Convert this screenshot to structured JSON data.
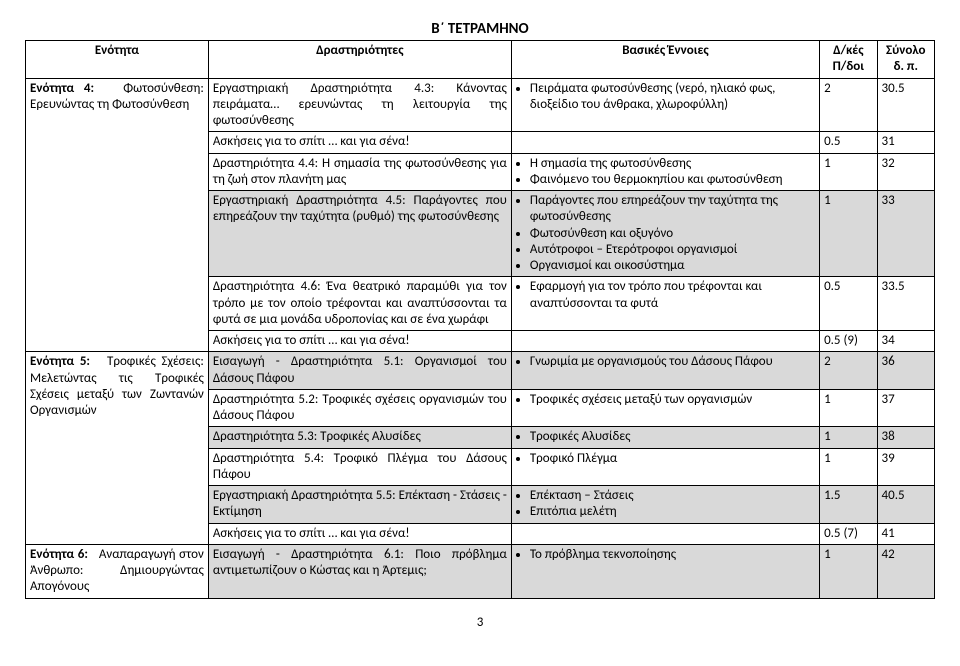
{
  "title": "Β΄ ΤΕΤΡΑΜΗΝΟ",
  "headers": {
    "unit": "Ενότητα",
    "activities": "Δραστηριότητες",
    "concepts": "Βασικές Έννοιες",
    "dk1": "Δ/κές",
    "dk2": "Π/δοι",
    "sum1": "Σύνολο",
    "sum2": "δ. π."
  },
  "unit4": {
    "label": "Ενότητα 4:",
    "name": "Φωτοσύνθεση: Ερευνώντας τη Φωτοσύνθεση",
    "rows": [
      {
        "act": "Εργαστηριακή Δραστηριότητα 4.3: Κάνοντας πειράματα… ερευνώντας τη λειτουργία της φωτοσύνθεσης",
        "conc": [
          "Πειράματα φωτοσύνθεσης (νερό, ηλιακό φως, διοξείδιο του άνθρακα, χλωροφύλλη)"
        ],
        "dk": "2",
        "sum": "30.5",
        "grey": false
      },
      {
        "act": "Ασκήσεις για το σπίτι … και για σένα!",
        "conc": [],
        "dk": "0.5",
        "sum": "31",
        "grey": false
      },
      {
        "act": "Δραστηριότητα 4.4: Η σημασία της φωτοσύνθεσης για τη ζωή στον πλανήτη μας",
        "conc": [
          "Η σημασία της φωτοσύνθεσης",
          "Φαινόμενο του θερμοκηπίου και φωτοσύνθεση"
        ],
        "dk": "1",
        "sum": "32",
        "grey": false
      },
      {
        "act": "Εργαστηριακή Δραστηριότητα 4.5: Παράγοντες που επηρεάζουν την ταχύτητα (ρυθμό) της φωτοσύνθεσης",
        "conc": [
          "Παράγοντες που επηρεάζουν την ταχύτητα της φωτοσύνθεσης",
          "Φωτοσύνθεση και οξυγόνο",
          "Αυτότροφοι – Ετερότροφοι οργανισμοί",
          "Οργανισμοί και οικοσύστημα"
        ],
        "dk": "1",
        "sum": "33",
        "grey": true
      },
      {
        "act": "Δραστηριότητα 4.6: Ένα θεατρικό παραμύθι για τον τρόπο με τον οποίο τρέφονται και αναπτύσσονται τα φυτά σε μια μονάδα υδροπονίας και σε ένα χωράφι",
        "conc": [
          "Εφαρμογή για τον τρόπο που τρέφονται και αναπτύσσονται τα φυτά"
        ],
        "dk": "0.5",
        "sum": "33.5",
        "grey": false
      },
      {
        "act": "Ασκήσεις για το σπίτι … και για σένα!",
        "conc": [],
        "dk": "0.5 (9)",
        "sum": "34",
        "grey": false
      }
    ]
  },
  "unit5": {
    "label": "Ενότητα 5:",
    "name": "Τροφικές Σχέσεις: Μελετώντας τις Τροφικές Σχέσεις μεταξύ των Ζωντανών Οργανισμών",
    "rows": [
      {
        "act": "Εισαγωγή - Δραστηριότητα 5.1: Οργανισμοί του Δάσους Πάφου",
        "conc": [
          "Γνωριμία με οργανισμούς του Δάσους Πάφου"
        ],
        "dk": "2",
        "sum": "36",
        "grey": true
      },
      {
        "act": "Δραστηριότητα 5.2: Τροφικές σχέσεις οργανισμών του Δάσους Πάφου",
        "conc": [
          "Τροφικές σχέσεις μεταξύ των οργανισμών"
        ],
        "dk": "1",
        "sum": "37",
        "grey": false
      },
      {
        "act": "Δραστηριότητα 5.3: Τροφικές Αλυσίδες",
        "conc": [
          "Τροφικές Αλυσίδες"
        ],
        "dk": "1",
        "sum": "38",
        "grey": true
      },
      {
        "act": "Δραστηριότητα 5.4: Τροφικό Πλέγμα του Δάσους Πάφου",
        "conc": [
          "Τροφικό Πλέγμα"
        ],
        "dk": "1",
        "sum": "39",
        "grey": false
      },
      {
        "act": "Εργαστηριακή Δραστηριότητα 5.5: Επέκταση - Στάσεις - Εκτίμηση",
        "conc": [
          "Επέκταση – Στάσεις",
          "Επιτόπια μελέτη"
        ],
        "dk": "1.5",
        "sum": "40.5",
        "grey": true
      },
      {
        "act": "Ασκήσεις για το σπίτι … και για σένα!",
        "conc": [],
        "dk": "0.5 (7)",
        "sum": "41",
        "grey": false
      }
    ]
  },
  "unit6": {
    "label": "Ενότητα 6:",
    "name": "Αναπαραγωγή στον Άνθρωπο: Δημιουργώντας Απογόνους",
    "rows": [
      {
        "act": "Εισαγωγή - Δραστηριότητα 6.1: Ποιο πρόβλημα αντιμετωπίζουν ο Κώστας και η Άρτεμις;",
        "conc": [
          "Το πρόβλημα τεκνοποίησης"
        ],
        "dk": "1",
        "sum": "42",
        "grey": true
      }
    ]
  },
  "pagenum": "3"
}
